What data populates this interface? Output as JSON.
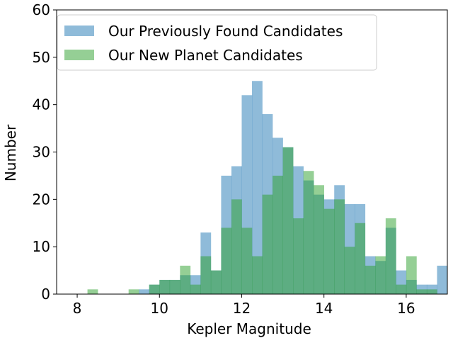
{
  "chart_data": {
    "type": "bar",
    "subtype": "overlapping-histogram",
    "title": "",
    "xlabel": "Kepler Magnitude",
    "ylabel": "Number",
    "xlim": [
      7.5,
      17.0
    ],
    "ylim": [
      0,
      60
    ],
    "xticks": [
      8,
      10,
      12,
      14,
      16
    ],
    "xtick_labels": [
      "8",
      "10",
      "12",
      "14",
      "16"
    ],
    "yticks": [
      0,
      10,
      20,
      30,
      40,
      50,
      60
    ],
    "ytick_labels": [
      "0",
      "10",
      "20",
      "30",
      "40",
      "50",
      "60"
    ],
    "grid": false,
    "legend_position": "top-left",
    "bin_edges": [
      8.0,
      8.25,
      8.5,
      8.75,
      9.0,
      9.25,
      9.5,
      9.75,
      10.0,
      10.25,
      10.5,
      10.75,
      11.0,
      11.25,
      11.5,
      11.75,
      12.0,
      12.25,
      12.5,
      12.75,
      13.0,
      13.25,
      13.5,
      13.75,
      14.0,
      14.25,
      14.5,
      14.75,
      15.0,
      15.25,
      15.5,
      15.75,
      16.0,
      16.25,
      16.5,
      16.75,
      17.0
    ],
    "series": [
      {
        "name": "Our Previously Found Candidates",
        "color": "#1f77b4",
        "opacity": 0.5,
        "values": [
          0,
          0,
          0,
          0,
          0,
          0,
          1,
          2,
          3,
          3,
          4,
          4,
          13,
          5,
          25,
          27,
          42,
          45,
          38,
          33,
          31,
          27,
          24,
          21,
          20,
          23,
          19,
          19,
          8,
          7,
          14,
          5,
          3,
          2,
          2,
          6
        ]
      },
      {
        "name": "Our New Planet Candidates",
        "color": "#2ca02c",
        "opacity": 0.5,
        "values": [
          0,
          1,
          0,
          0,
          0,
          1,
          0,
          2,
          3,
          3,
          6,
          2,
          8,
          5,
          14,
          20,
          14,
          8,
          21,
          25,
          31,
          16,
          26,
          23,
          18,
          20,
          10,
          15,
          6,
          8,
          16,
          2,
          8,
          1,
          1,
          0
        ]
      }
    ]
  }
}
